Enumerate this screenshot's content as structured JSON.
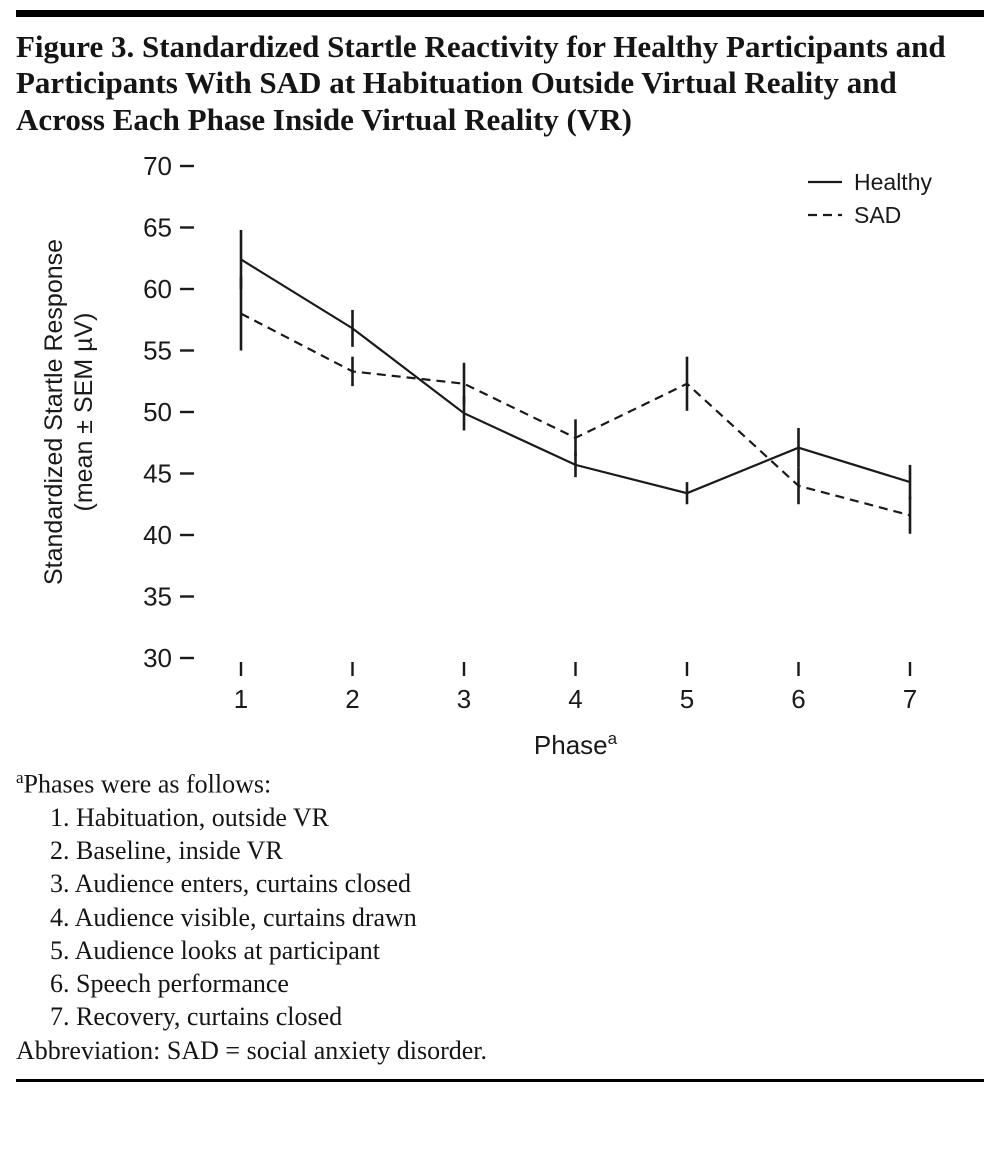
{
  "figure": {
    "title": "Figure 3. Standardized Startle Reactivity for Healthy Participants and Participants With SAD at Habituation Outside Virtual Reality and Across Each Phase Inside Virtual Reality (VR)"
  },
  "chart_data": {
    "type": "line",
    "x": [
      1,
      2,
      3,
      4,
      5,
      6,
      7
    ],
    "xlabel": "Phase",
    "xlabel_superscript": "a",
    "ylabel_lines": [
      "Standardized Startle Response",
      "(mean ± SEM µV)"
    ],
    "ylim": [
      30,
      70
    ],
    "yticks": [
      30,
      35,
      40,
      45,
      50,
      55,
      60,
      65,
      70
    ],
    "grid": false,
    "legend_position": "top-right",
    "series": [
      {
        "name": "Healthy",
        "style": "solid",
        "values": [
          62.4,
          56.8,
          49.9,
          45.7,
          43.4,
          47.1,
          44.3
        ],
        "sem": [
          2.4,
          1.5,
          1.4,
          1.0,
          0.9,
          1.6,
          1.4
        ]
      },
      {
        "name": "SAD",
        "style": "dashed",
        "values": [
          58.0,
          53.3,
          52.3,
          47.9,
          52.3,
          44.0,
          41.6
        ],
        "sem": [
          3.0,
          1.2,
          1.7,
          1.5,
          2.2,
          1.5,
          1.5
        ]
      }
    ]
  },
  "footnotes": {
    "marker": "a",
    "intro": "Phases were as follows:",
    "phases": [
      "1. Habituation, outside VR",
      "2. Baseline, inside VR",
      "3. Audience enters, curtains closed",
      "4. Audience visible, curtains drawn",
      "5. Audience looks at participant",
      "6. Speech performance",
      "7. Recovery, curtains closed"
    ],
    "abbreviation": "Abbreviation: SAD = social anxiety disorder."
  }
}
